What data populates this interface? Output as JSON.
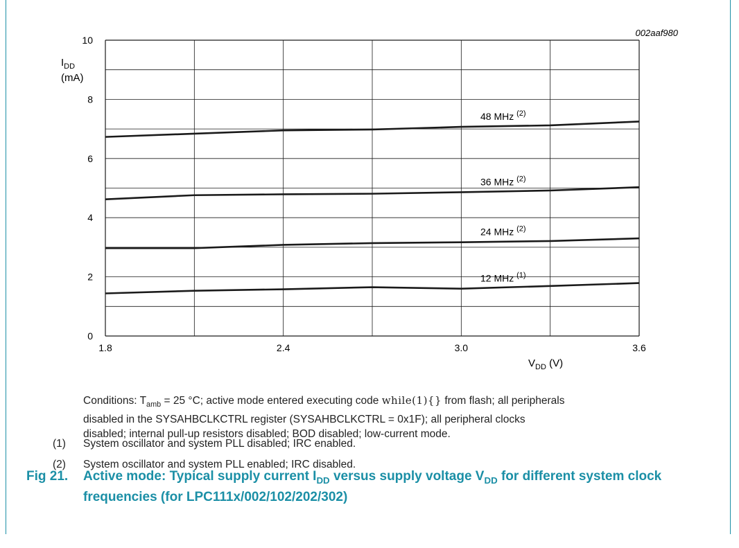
{
  "figure_id": "002aaf980",
  "chart_data": {
    "type": "line",
    "ylabel_main": "I",
    "ylabel_sub": "DD",
    "ylabel_unit": "(mA)",
    "xlabel_main": "V",
    "xlabel_sub": "DD",
    "xlabel_unit": "(V)",
    "xlim": [
      1.8,
      3.6
    ],
    "ylim": [
      0,
      10
    ],
    "xticks": [
      "1.8",
      "2.4",
      "3.0",
      "3.6"
    ],
    "xtick_values": [
      1.8,
      2.4,
      3.0,
      3.6
    ],
    "yticks": [
      "0",
      "2",
      "4",
      "6",
      "8",
      "10"
    ],
    "ytick_values": [
      0,
      2,
      4,
      6,
      8,
      10
    ],
    "grid": true,
    "series": [
      {
        "name": "48 MHz",
        "note": "(2)",
        "x": [
          1.8,
          2.1,
          2.4,
          2.7,
          3.0,
          3.3,
          3.6
        ],
        "y": [
          6.73,
          6.84,
          6.95,
          6.98,
          7.07,
          7.12,
          7.25
        ]
      },
      {
        "name": "36 MHz",
        "note": "(2)",
        "x": [
          1.8,
          2.1,
          2.4,
          2.7,
          3.0,
          3.3,
          3.6
        ],
        "y": [
          4.62,
          4.76,
          4.79,
          4.81,
          4.86,
          4.92,
          5.03
        ]
      },
      {
        "name": "24 MHz",
        "note": "(2)",
        "x": [
          1.8,
          2.1,
          2.4,
          2.7,
          3.0,
          3.3,
          3.6
        ],
        "y": [
          2.97,
          2.97,
          3.08,
          3.14,
          3.17,
          3.21,
          3.3
        ]
      },
      {
        "name": "12 MHz",
        "note": "(1)",
        "x": [
          1.8,
          2.1,
          2.4,
          2.7,
          3.0,
          3.3,
          3.6
        ],
        "y": [
          1.44,
          1.53,
          1.58,
          1.65,
          1.6,
          1.69,
          1.79
        ]
      }
    ]
  },
  "notes": {
    "conditions_1": "Conditions: T",
    "conditions_sub": "amb",
    "conditions_2": " = 25 °C; active mode entered executing code ",
    "conditions_code": "while(1){}",
    "conditions_3": " from flash; all peripherals",
    "conditions_line2": "disabled in the SYSAHBCLKCTRL register (SYSAHBCLKCTRL = 0x1F); all peripheral clocks",
    "conditions_line3": "disabled; internal pull-up resistors disabled; BOD disabled; low-current mode.",
    "item1_num": "(1)",
    "item1_text": "System oscillator and system PLL disabled; IRC enabled.",
    "item2_num": "(2)",
    "item2_text": "System oscillator and system PLL enabled; IRC disabled."
  },
  "caption": {
    "fig": "Fig 21.",
    "text_1": "Active mode: Typical supply current I",
    "sub_1": "DD",
    "text_2": " versus supply voltage V",
    "sub_2": "DD",
    "text_3": " for different system clock frequencies (for LPC111x/002/102/202/302)"
  },
  "colors": {
    "accent": "#1b8fa6",
    "line": "#1a1a1a",
    "grid": "#1a1a1a"
  }
}
